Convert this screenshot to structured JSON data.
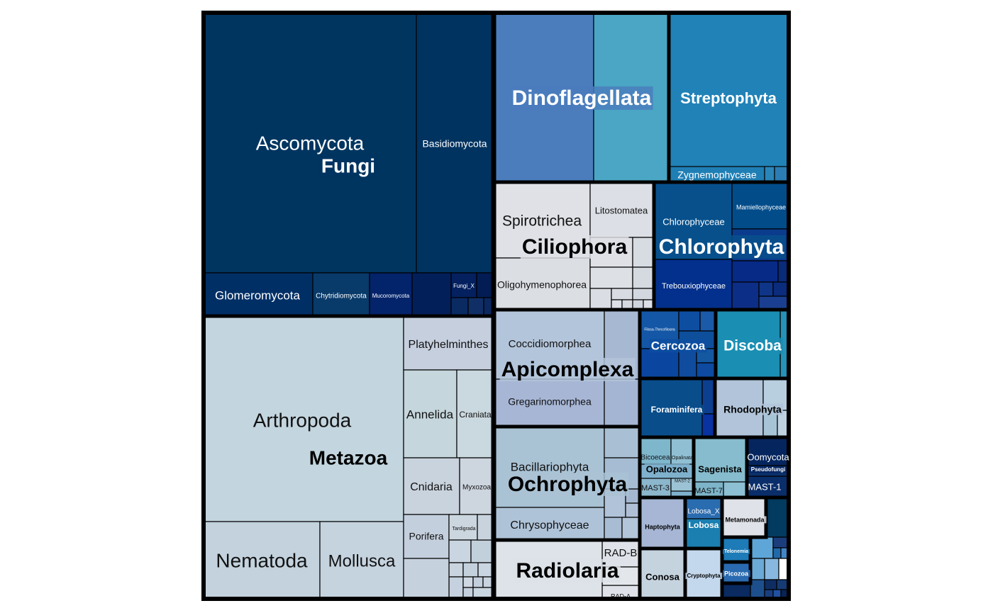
{
  "chart_data": {
    "type": "treemap",
    "title": "",
    "groups": [
      {
        "name": "Fungi",
        "color": "#003560",
        "children": [
          {
            "name": "Ascomycota",
            "color": "#003560"
          },
          {
            "name": "Basidiomycota",
            "color": "#003360"
          },
          {
            "name": "Glomeromycota",
            "color": "#002f66"
          },
          {
            "name": "Chytridiomycota",
            "color": "#083a6a"
          },
          {
            "name": "Mucoromycota",
            "color": "#03236a"
          },
          {
            "name": "Fungi_X",
            "color": "#04205e"
          }
        ]
      },
      {
        "name": "Metazoa",
        "color": "#c3d5df",
        "children": [
          {
            "name": "Arthropoda",
            "color": "#c3d5df"
          },
          {
            "name": "Nematoda",
            "color": "#c3d2dd"
          },
          {
            "name": "Mollusca",
            "color": "#c5d3df"
          },
          {
            "name": "Platyhelminthes",
            "color": "#c5cfde"
          },
          {
            "name": "Annelida",
            "color": "#c5d6dc"
          },
          {
            "name": "Craniata",
            "color": "#cad8df"
          },
          {
            "name": "Cnidaria",
            "color": "#c9d3dd"
          },
          {
            "name": "Myxozoa",
            "color": "#cdd5de"
          },
          {
            "name": "Porifera",
            "color": "#c4cfdd"
          },
          {
            "name": "Tardigrada",
            "color": "#cbd6df"
          }
        ]
      },
      {
        "name": "Dinoflagellata",
        "color": "#4b7dbd",
        "children": []
      },
      {
        "name": "Streptophyta",
        "color": "#2182b7",
        "children": [
          {
            "name": "Zygnemophyceae",
            "color": "#1f7fb5"
          }
        ]
      },
      {
        "name": "Ciliophora",
        "color": "#dfe1e6",
        "children": [
          {
            "name": "Spirotrichea",
            "color": "#dfe1e6"
          },
          {
            "name": "Litostomatea",
            "color": "#dcdfe5"
          },
          {
            "name": "Oligohymenophorea",
            "color": "#dbdee3"
          }
        ]
      },
      {
        "name": "Chlorophyta",
        "color": "#07508c",
        "children": [
          {
            "name": "Chlorophyceae",
            "color": "#07508c"
          },
          {
            "name": "Mamiellophyceae",
            "color": "#024c8a"
          },
          {
            "name": "Trebouxiophyceae",
            "color": "#03308c"
          }
        ]
      },
      {
        "name": "Apicomplexa",
        "color": "#b3c5da",
        "children": [
          {
            "name": "Coccidiomorphea",
            "color": "#b3c5da"
          },
          {
            "name": "Gregarinomorphea",
            "color": "#a7b6d5"
          }
        ]
      },
      {
        "name": "Ochrophyta",
        "color": "#a9c2d4",
        "children": [
          {
            "name": "Bacillariophyta",
            "color": "#a9c2d4"
          },
          {
            "name": "Chrysophyceae",
            "color": "#afc3d8"
          }
        ]
      },
      {
        "name": "Radiolaria",
        "color": "#dce2e7",
        "children": [
          {
            "name": "RAD-B",
            "color": "#dfe3e9"
          },
          {
            "name": "RAD-A",
            "color": "#dfe3e9"
          }
        ]
      },
      {
        "name": "Cercozoa",
        "color": "#0d4ea1",
        "children": [
          {
            "name": "Filosa-Thecofilosea",
            "color": "#1457a6"
          }
        ]
      },
      {
        "name": "Discoba",
        "color": "#1b8eb3",
        "children": []
      },
      {
        "name": "Foraminifera",
        "color": "#0a4d8b",
        "children": []
      },
      {
        "name": "Rhodophyta",
        "color": "#b1c4d9",
        "children": []
      },
      {
        "name": "Opalozoa",
        "color": "#7fb1cd",
        "children": [
          {
            "name": "Bicoecea",
            "color": "#7eb6cc"
          },
          {
            "name": "Opalinata",
            "color": "#90bfd3"
          },
          {
            "name": "MAST-3",
            "color": "#8bb6cc"
          },
          {
            "name": "MAST-2",
            "color": "#9cc3d5"
          }
        ]
      },
      {
        "name": "Sagenista",
        "color": "#86bccd",
        "children": [
          {
            "name": "MAST-7",
            "color": "#7db4c9"
          }
        ]
      },
      {
        "name": "Pseudofungi",
        "color": "#05255f",
        "children": [
          {
            "name": "Oomycota",
            "color": "#05255f"
          },
          {
            "name": "MAST-1",
            "color": "#0a2e6a"
          }
        ]
      },
      {
        "name": "Haptophyta",
        "color": "#a6b6d4",
        "children": []
      },
      {
        "name": "Lobosa",
        "color": "#1b7fb0",
        "children": [
          {
            "name": "Lobosa_X",
            "color": "#2a6cb0"
          }
        ]
      },
      {
        "name": "Metamonada",
        "color": "#dfe2e8",
        "children": []
      },
      {
        "name": "Conosa",
        "color": "#c5d3df",
        "children": []
      },
      {
        "name": "Cryptophyta",
        "color": "#c4d8ed",
        "children": []
      },
      {
        "name": "Telonemia",
        "color": "#1d7bb7",
        "children": []
      },
      {
        "name": "Picozoa",
        "color": "#2a6ab0",
        "children": []
      }
    ]
  }
}
